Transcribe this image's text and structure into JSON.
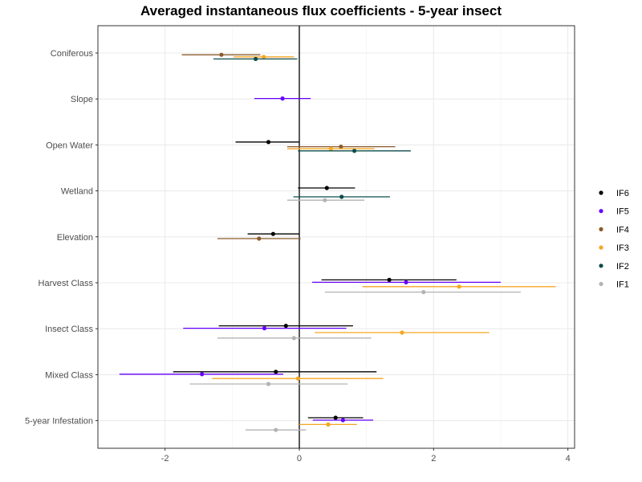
{
  "chart_data": {
    "type": "scatter",
    "subtype": "coefficient-plot-with-intervals",
    "title": "Averaged instantaneous flux coefficients - 5-year insect",
    "xlabel": "",
    "ylabel": "",
    "xlim": [
      -3.0,
      4.1
    ],
    "xticks": [
      -2,
      0,
      2,
      4
    ],
    "grid": true,
    "legend_position": "right",
    "reference_line_x": 0,
    "categories": [
      "Coniferous",
      "Slope",
      "Open Water",
      "Wetland",
      "Elevation",
      "Harvest Class",
      "Insect Class",
      "Mixed Class",
      "5-year Infestation"
    ],
    "series": [
      {
        "name": "IF6",
        "color": "#000000",
        "points": [
          {
            "category": "Open Water",
            "estimate": -0.46,
            "lower": -0.95,
            "upper": 0.0
          },
          {
            "category": "Wetland",
            "estimate": 0.41,
            "lower": -0.02,
            "upper": 0.83
          },
          {
            "category": "Elevation",
            "estimate": -0.39,
            "lower": -0.77,
            "upper": 0.0
          },
          {
            "category": "Harvest Class",
            "estimate": 1.34,
            "lower": 0.33,
            "upper": 2.34
          },
          {
            "category": "Insect Class",
            "estimate": -0.2,
            "lower": -1.2,
            "upper": 0.8
          },
          {
            "category": "Mixed Class",
            "estimate": -0.35,
            "lower": -1.88,
            "upper": 1.15
          },
          {
            "category": "5-year Infestation",
            "estimate": 0.54,
            "lower": 0.13,
            "upper": 0.95
          }
        ]
      },
      {
        "name": "IF5",
        "color": "#6600FF",
        "points": [
          {
            "category": "Slope",
            "estimate": -0.25,
            "lower": -0.67,
            "upper": 0.17
          },
          {
            "category": "Harvest Class",
            "estimate": 1.59,
            "lower": 0.19,
            "upper": 3.0
          },
          {
            "category": "Insect Class",
            "estimate": -0.52,
            "lower": -1.73,
            "upper": 0.7
          },
          {
            "category": "Mixed Class",
            "estimate": -1.45,
            "lower": -2.68,
            "upper": -0.24
          },
          {
            "category": "5-year Infestation",
            "estimate": 0.65,
            "lower": 0.2,
            "upper": 1.1
          }
        ]
      },
      {
        "name": "IF4",
        "color": "#8B5A2B",
        "points": [
          {
            "category": "Coniferous",
            "estimate": -1.16,
            "lower": -1.75,
            "upper": -0.58
          },
          {
            "category": "Open Water",
            "estimate": 0.62,
            "lower": -0.18,
            "upper": 1.43
          },
          {
            "category": "Elevation",
            "estimate": -0.6,
            "lower": -1.22,
            "upper": 0.02
          }
        ]
      },
      {
        "name": "IF3",
        "color": "#F5A623",
        "points": [
          {
            "category": "Coniferous",
            "estimate": -0.53,
            "lower": -0.98,
            "upper": -0.08
          },
          {
            "category": "Open Water",
            "estimate": 0.47,
            "lower": -0.18,
            "upper": 1.12
          },
          {
            "category": "Harvest Class",
            "estimate": 2.38,
            "lower": 0.94,
            "upper": 3.82
          },
          {
            "category": "Insect Class",
            "estimate": 1.53,
            "lower": 0.23,
            "upper": 2.83
          },
          {
            "category": "Mixed Class",
            "estimate": -0.02,
            "lower": -1.3,
            "upper": 1.25
          },
          {
            "category": "5-year Infestation",
            "estimate": 0.43,
            "lower": 0.0,
            "upper": 0.86
          }
        ]
      },
      {
        "name": "IF2",
        "color": "#0B4D4A",
        "points": [
          {
            "category": "Coniferous",
            "estimate": -0.65,
            "lower": -1.28,
            "upper": -0.03
          },
          {
            "category": "Open Water",
            "estimate": 0.82,
            "lower": -0.02,
            "upper": 1.66
          },
          {
            "category": "Wetland",
            "estimate": 0.63,
            "lower": -0.09,
            "upper": 1.35
          }
        ]
      },
      {
        "name": "IF1",
        "color": "#B3B3B3",
        "points": [
          {
            "category": "Wetland",
            "estimate": 0.38,
            "lower": -0.18,
            "upper": 0.97
          },
          {
            "category": "Harvest Class",
            "estimate": 1.85,
            "lower": 0.38,
            "upper": 3.3
          },
          {
            "category": "Insect Class",
            "estimate": -0.08,
            "lower": -1.22,
            "upper": 1.07
          },
          {
            "category": "Mixed Class",
            "estimate": -0.46,
            "lower": -1.63,
            "upper": 0.72
          },
          {
            "category": "5-year Infestation",
            "estimate": -0.35,
            "lower": -0.8,
            "upper": 0.1
          }
        ]
      }
    ]
  }
}
